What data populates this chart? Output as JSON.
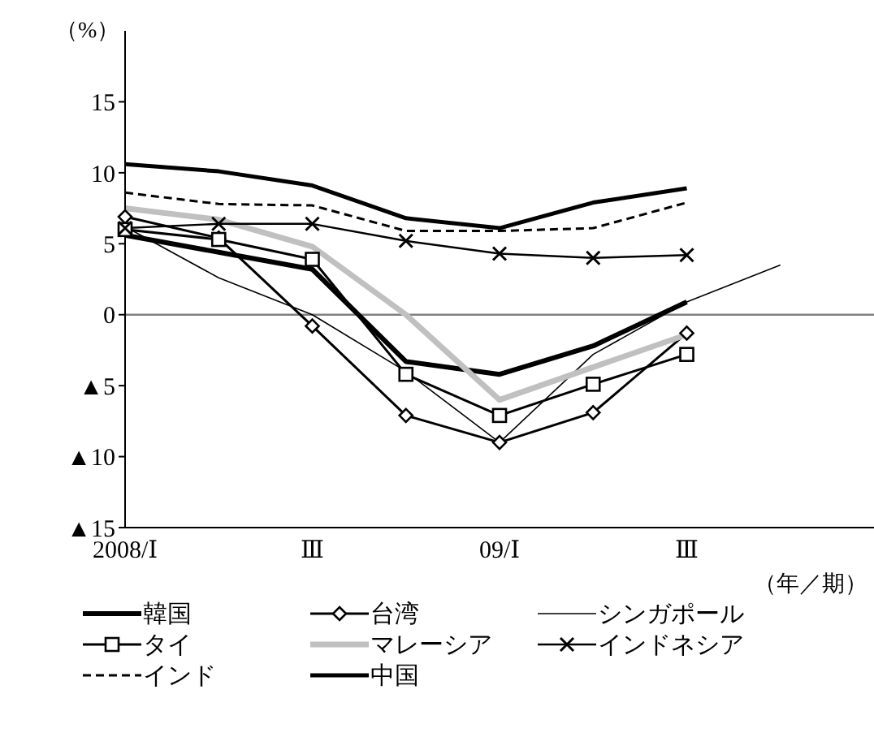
{
  "chart_data": {
    "type": "line",
    "ylabel": "（%）",
    "xlabel": "（年／期）",
    "categories": [
      "2008/Ⅰ",
      null,
      "Ⅲ",
      null,
      "09/Ⅰ",
      null,
      "Ⅲ",
      null,
      null
    ],
    "ylim": [
      -15,
      20
    ],
    "yticks": [
      {
        "value": -15,
        "label": "▲15"
      },
      {
        "value": -10,
        "label": "▲10"
      },
      {
        "value": -5,
        "label": "▲5"
      },
      0,
      5,
      10,
      15
    ],
    "ref_lines": [
      {
        "axis": "y",
        "value": 0,
        "color": "#808080"
      }
    ],
    "grid": false,
    "legend": "bottom",
    "series": [
      {
        "name": "韓国",
        "color": "#000000",
        "marker": "none",
        "line_style": "solid",
        "values": [
          5.6,
          4.4,
          3.2,
          -3.3,
          -4.2,
          -2.2,
          0.9,
          null,
          null
        ]
      },
      {
        "name": "台湾",
        "color": "#000000",
        "marker": "diamond",
        "line_style": "solid",
        "values": [
          6.9,
          5.4,
          -0.8,
          -7.1,
          -9.0,
          -6.9,
          -1.3,
          null,
          null
        ]
      },
      {
        "name": "シンガポール",
        "color": "#000000",
        "marker": "none",
        "line_style": "solid",
        "values": [
          6.2,
          2.6,
          0.0,
          -4.0,
          -9.0,
          -2.8,
          0.9,
          3.5,
          null
        ]
      },
      {
        "name": "タイ",
        "color": "#000000",
        "marker": "square",
        "line_style": "solid",
        "values": [
          6.0,
          5.3,
          3.9,
          -4.2,
          -7.1,
          -4.9,
          -2.8,
          null,
          null
        ]
      },
      {
        "name": "マレーシア",
        "color": "#c0c0c0",
        "marker": "none",
        "line_style": "solid",
        "values": [
          7.5,
          6.7,
          4.8,
          0.0,
          -6.0,
          -3.7,
          -1.4,
          null,
          null
        ]
      },
      {
        "name": "インドネシア",
        "color": "#000000",
        "marker": "cross",
        "line_style": "solid",
        "values": [
          6.1,
          6.4,
          6.4,
          5.2,
          4.3,
          4.0,
          4.2,
          null,
          null
        ]
      },
      {
        "name": "インド",
        "color": "#000000",
        "marker": "none",
        "line_style": "dashed",
        "values": [
          8.6,
          7.8,
          7.7,
          5.9,
          5.9,
          6.1,
          7.9,
          null,
          null
        ]
      },
      {
        "name": "中国",
        "color": "#000000",
        "marker": "none",
        "line_style": "solid",
        "values": [
          10.6,
          10.1,
          9.1,
          6.8,
          6.1,
          7.9,
          8.9,
          null,
          null
        ]
      }
    ]
  }
}
